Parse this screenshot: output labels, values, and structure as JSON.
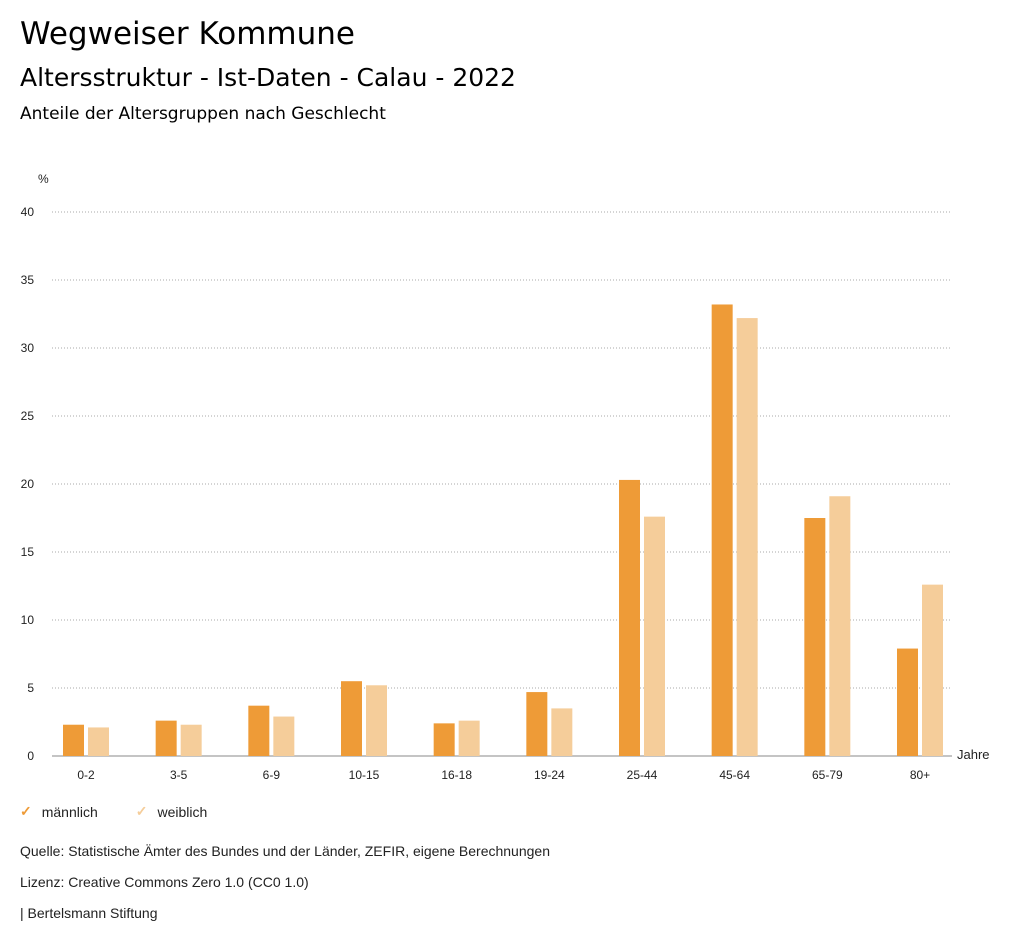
{
  "header": {
    "title": "Wegweiser Kommune",
    "subtitle": "Altersstruktur - Ist-Daten - Calau - 2022",
    "chart_title": "Anteile der Altersgruppen nach Geschlecht"
  },
  "legend": [
    {
      "label": "männlich",
      "icon": "check-icon",
      "color": "#ee9b37"
    },
    {
      "label": "weiblich",
      "icon": "check-icon",
      "color": "#f5cd9a"
    }
  ],
  "footer": {
    "source": "Quelle: Statistische Ämter des Bundes und der Länder, ZEFIR, eigene Berechnungen",
    "license": "Lizenz: Creative Commons Zero 1.0 (CC0 1.0)",
    "org": "| Bertelsmann Stiftung"
  },
  "chart_data": {
    "type": "bar",
    "title": "Anteile der Altersgruppen nach Geschlecht",
    "ylabel": "%",
    "xlabel": "Jahre",
    "ylim": [
      0,
      40
    ],
    "yticks": [
      0,
      5,
      10,
      15,
      20,
      25,
      30,
      35,
      40
    ],
    "grid": true,
    "legend_position": "bottom-left",
    "categories": [
      "0-2",
      "3-5",
      "6-9",
      "10-15",
      "16-18",
      "19-24",
      "25-44",
      "45-64",
      "65-79",
      "80+"
    ],
    "series": [
      {
        "name": "männlich",
        "color": "#ee9b37",
        "values": [
          2.3,
          2.6,
          3.7,
          5.5,
          2.4,
          4.7,
          20.3,
          33.2,
          17.5,
          7.9
        ]
      },
      {
        "name": "weiblich",
        "color": "#f5cd9a",
        "values": [
          2.1,
          2.3,
          2.9,
          5.2,
          2.6,
          3.5,
          17.6,
          32.2,
          19.1,
          12.6
        ]
      }
    ]
  }
}
